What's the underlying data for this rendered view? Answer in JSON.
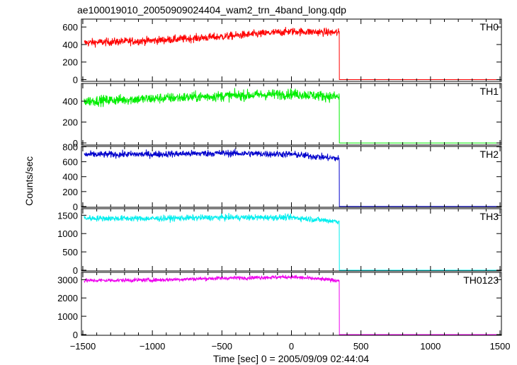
{
  "chart_data": {
    "type": "line",
    "title": "ae100019010_20050909024404_wam2_trn_4band_long.qdp",
    "xlabel": "Time [sec] 0 = 2005/09/09 02:44:04",
    "ylabel": "Counts/sec",
    "xlim": [
      -1510,
      1510
    ],
    "xticks": [
      -1500,
      -1000,
      -500,
      0,
      500,
      1000,
      1500
    ],
    "xticklabels": [
      "−1500",
      "−1000",
      "−500",
      "0",
      "500",
      "1000",
      "1500"
    ],
    "grid": false,
    "x_cutoff": 345,
    "panels": [
      {
        "name": "TH0",
        "color": "#ff0000",
        "ylim": [
          -20,
          690
        ],
        "yticks": [
          0,
          200,
          400,
          600
        ],
        "level_x": [
          -1500,
          -1000,
          -500,
          0,
          345
        ],
        "level_y": [
          420,
          445,
          490,
          550,
          535
        ],
        "noise": 50,
        "after": 0
      },
      {
        "name": "TH1",
        "color": "#00ee00",
        "ylim": [
          -20,
          570
        ],
        "yticks": [
          0,
          200,
          400
        ],
        "level_x": [
          -1500,
          -1000,
          -500,
          0,
          345
        ],
        "level_y": [
          400,
          425,
          450,
          470,
          440
        ],
        "noise": 55,
        "after": 0
      },
      {
        "name": "TH2",
        "color": "#0000cc",
        "ylim": [
          -10,
          805
        ],
        "yticks": [
          0,
          200,
          400,
          600,
          800
        ],
        "level_x": [
          -1500,
          -1000,
          -500,
          0,
          345
        ],
        "level_y": [
          695,
          700,
          715,
          700,
          640
        ],
        "noise": 50,
        "after": 0
      },
      {
        "name": "TH3",
        "color": "#00eeee",
        "ylim": [
          -20,
          1680
        ],
        "yticks": [
          0,
          500,
          1000,
          1500
        ],
        "level_x": [
          -1500,
          -1000,
          -500,
          0,
          345
        ],
        "level_y": [
          1420,
          1410,
          1440,
          1440,
          1330
        ],
        "noise": 90,
        "after": 0
      },
      {
        "name": "TH0123",
        "color": "#ee00ee",
        "ylim": [
          -40,
          3400
        ],
        "yticks": [
          0,
          1000,
          2000,
          3000
        ],
        "level_x": [
          -1500,
          -1000,
          -500,
          0,
          345
        ],
        "level_y": [
          2950,
          2980,
          3080,
          3150,
          2950
        ],
        "noise": 120,
        "after": 0
      }
    ]
  }
}
